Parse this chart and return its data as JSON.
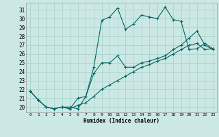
{
  "xlabel": "Humidex (Indice chaleur)",
  "background_color": "#cce8e4",
  "grid_color": "#aad4ce",
  "line_color": "#006666",
  "x_ticks": [
    0,
    1,
    2,
    3,
    4,
    5,
    6,
    7,
    8,
    9,
    10,
    11,
    12,
    13,
    14,
    15,
    16,
    17,
    18,
    19,
    20,
    21,
    22,
    23
  ],
  "y_ticks": [
    20,
    21,
    22,
    23,
    24,
    25,
    26,
    27,
    28,
    29,
    30,
    31
  ],
  "xlim": [
    -0.5,
    23.5
  ],
  "ylim": [
    19.4,
    31.8
  ],
  "series": [
    {
      "x": [
        0,
        1,
        2,
        3,
        4,
        5,
        6,
        7,
        8,
        9,
        10,
        11,
        12,
        13,
        14,
        15,
        16,
        17,
        18,
        19,
        20,
        21,
        22,
        23
      ],
      "y": [
        21.8,
        20.8,
        20.0,
        19.8,
        20.0,
        20.0,
        19.8,
        21.2,
        24.5,
        29.8,
        30.2,
        31.2,
        28.8,
        29.4,
        30.4,
        30.2,
        30.0,
        31.3,
        29.9,
        29.7,
        26.5,
        26.6,
        27.2,
        26.6
      ]
    },
    {
      "x": [
        0,
        1,
        2,
        3,
        4,
        5,
        6,
        7,
        8,
        9,
        10,
        11,
        12,
        13,
        14,
        15,
        16,
        17,
        18,
        19,
        20,
        21,
        22,
        23
      ],
      "y": [
        21.8,
        20.8,
        20.0,
        19.8,
        20.0,
        19.8,
        21.0,
        21.2,
        23.8,
        25.0,
        25.0,
        25.8,
        24.5,
        24.5,
        25.0,
        25.2,
        25.5,
        25.8,
        26.5,
        27.0,
        27.8,
        28.6,
        27.0,
        26.5
      ]
    },
    {
      "x": [
        0,
        1,
        2,
        3,
        4,
        5,
        6,
        7,
        8,
        9,
        10,
        11,
        12,
        13,
        14,
        15,
        16,
        17,
        18,
        19,
        20,
        21,
        22,
        23
      ],
      "y": [
        21.8,
        20.8,
        20.0,
        19.8,
        20.0,
        19.8,
        20.2,
        20.5,
        21.2,
        22.0,
        22.5,
        23.0,
        23.5,
        24.0,
        24.5,
        24.8,
        25.2,
        25.5,
        26.0,
        26.5,
        27.0,
        27.2,
        26.5,
        26.6
      ]
    }
  ]
}
